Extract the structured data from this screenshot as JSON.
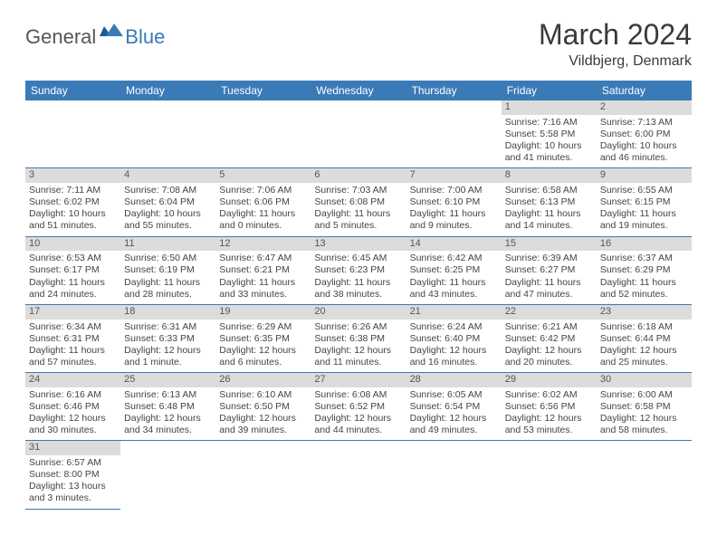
{
  "logo": {
    "text1": "General",
    "text2": "Blue"
  },
  "title": "March 2024",
  "location": "Vildbjerg, Denmark",
  "colors": {
    "header_bg": "#3a7ab7",
    "header_text": "#ffffff",
    "daynum_bg": "#dcdcdc",
    "border": "#3a7ab7",
    "body_text": "#444444",
    "page_bg": "#ffffff"
  },
  "typography": {
    "title_fontsize": 32,
    "location_fontsize": 16,
    "dayhead_fontsize": 12,
    "cell_fontsize": 10.5
  },
  "layout": {
    "columns": 7,
    "rows": 6
  },
  "weekdays": [
    "Sunday",
    "Monday",
    "Tuesday",
    "Wednesday",
    "Thursday",
    "Friday",
    "Saturday"
  ],
  "cells": [
    {
      "blank": true
    },
    {
      "blank": true
    },
    {
      "blank": true
    },
    {
      "blank": true
    },
    {
      "blank": true
    },
    {
      "day": "1",
      "sunrise": "Sunrise: 7:16 AM",
      "sunset": "Sunset: 5:58 PM",
      "dl1": "Daylight: 10 hours",
      "dl2": "and 41 minutes."
    },
    {
      "day": "2",
      "sunrise": "Sunrise: 7:13 AM",
      "sunset": "Sunset: 6:00 PM",
      "dl1": "Daylight: 10 hours",
      "dl2": "and 46 minutes."
    },
    {
      "day": "3",
      "sunrise": "Sunrise: 7:11 AM",
      "sunset": "Sunset: 6:02 PM",
      "dl1": "Daylight: 10 hours",
      "dl2": "and 51 minutes."
    },
    {
      "day": "4",
      "sunrise": "Sunrise: 7:08 AM",
      "sunset": "Sunset: 6:04 PM",
      "dl1": "Daylight: 10 hours",
      "dl2": "and 55 minutes."
    },
    {
      "day": "5",
      "sunrise": "Sunrise: 7:06 AM",
      "sunset": "Sunset: 6:06 PM",
      "dl1": "Daylight: 11 hours",
      "dl2": "and 0 minutes."
    },
    {
      "day": "6",
      "sunrise": "Sunrise: 7:03 AM",
      "sunset": "Sunset: 6:08 PM",
      "dl1": "Daylight: 11 hours",
      "dl2": "and 5 minutes."
    },
    {
      "day": "7",
      "sunrise": "Sunrise: 7:00 AM",
      "sunset": "Sunset: 6:10 PM",
      "dl1": "Daylight: 11 hours",
      "dl2": "and 9 minutes."
    },
    {
      "day": "8",
      "sunrise": "Sunrise: 6:58 AM",
      "sunset": "Sunset: 6:13 PM",
      "dl1": "Daylight: 11 hours",
      "dl2": "and 14 minutes."
    },
    {
      "day": "9",
      "sunrise": "Sunrise: 6:55 AM",
      "sunset": "Sunset: 6:15 PM",
      "dl1": "Daylight: 11 hours",
      "dl2": "and 19 minutes."
    },
    {
      "day": "10",
      "sunrise": "Sunrise: 6:53 AM",
      "sunset": "Sunset: 6:17 PM",
      "dl1": "Daylight: 11 hours",
      "dl2": "and 24 minutes."
    },
    {
      "day": "11",
      "sunrise": "Sunrise: 6:50 AM",
      "sunset": "Sunset: 6:19 PM",
      "dl1": "Daylight: 11 hours",
      "dl2": "and 28 minutes."
    },
    {
      "day": "12",
      "sunrise": "Sunrise: 6:47 AM",
      "sunset": "Sunset: 6:21 PM",
      "dl1": "Daylight: 11 hours",
      "dl2": "and 33 minutes."
    },
    {
      "day": "13",
      "sunrise": "Sunrise: 6:45 AM",
      "sunset": "Sunset: 6:23 PM",
      "dl1": "Daylight: 11 hours",
      "dl2": "and 38 minutes."
    },
    {
      "day": "14",
      "sunrise": "Sunrise: 6:42 AM",
      "sunset": "Sunset: 6:25 PM",
      "dl1": "Daylight: 11 hours",
      "dl2": "and 43 minutes."
    },
    {
      "day": "15",
      "sunrise": "Sunrise: 6:39 AM",
      "sunset": "Sunset: 6:27 PM",
      "dl1": "Daylight: 11 hours",
      "dl2": "and 47 minutes."
    },
    {
      "day": "16",
      "sunrise": "Sunrise: 6:37 AM",
      "sunset": "Sunset: 6:29 PM",
      "dl1": "Daylight: 11 hours",
      "dl2": "and 52 minutes."
    },
    {
      "day": "17",
      "sunrise": "Sunrise: 6:34 AM",
      "sunset": "Sunset: 6:31 PM",
      "dl1": "Daylight: 11 hours",
      "dl2": "and 57 minutes."
    },
    {
      "day": "18",
      "sunrise": "Sunrise: 6:31 AM",
      "sunset": "Sunset: 6:33 PM",
      "dl1": "Daylight: 12 hours",
      "dl2": "and 1 minute."
    },
    {
      "day": "19",
      "sunrise": "Sunrise: 6:29 AM",
      "sunset": "Sunset: 6:35 PM",
      "dl1": "Daylight: 12 hours",
      "dl2": "and 6 minutes."
    },
    {
      "day": "20",
      "sunrise": "Sunrise: 6:26 AM",
      "sunset": "Sunset: 6:38 PM",
      "dl1": "Daylight: 12 hours",
      "dl2": "and 11 minutes."
    },
    {
      "day": "21",
      "sunrise": "Sunrise: 6:24 AM",
      "sunset": "Sunset: 6:40 PM",
      "dl1": "Daylight: 12 hours",
      "dl2": "and 16 minutes."
    },
    {
      "day": "22",
      "sunrise": "Sunrise: 6:21 AM",
      "sunset": "Sunset: 6:42 PM",
      "dl1": "Daylight: 12 hours",
      "dl2": "and 20 minutes."
    },
    {
      "day": "23",
      "sunrise": "Sunrise: 6:18 AM",
      "sunset": "Sunset: 6:44 PM",
      "dl1": "Daylight: 12 hours",
      "dl2": "and 25 minutes."
    },
    {
      "day": "24",
      "sunrise": "Sunrise: 6:16 AM",
      "sunset": "Sunset: 6:46 PM",
      "dl1": "Daylight: 12 hours",
      "dl2": "and 30 minutes."
    },
    {
      "day": "25",
      "sunrise": "Sunrise: 6:13 AM",
      "sunset": "Sunset: 6:48 PM",
      "dl1": "Daylight: 12 hours",
      "dl2": "and 34 minutes."
    },
    {
      "day": "26",
      "sunrise": "Sunrise: 6:10 AM",
      "sunset": "Sunset: 6:50 PM",
      "dl1": "Daylight: 12 hours",
      "dl2": "and 39 minutes."
    },
    {
      "day": "27",
      "sunrise": "Sunrise: 6:08 AM",
      "sunset": "Sunset: 6:52 PM",
      "dl1": "Daylight: 12 hours",
      "dl2": "and 44 minutes."
    },
    {
      "day": "28",
      "sunrise": "Sunrise: 6:05 AM",
      "sunset": "Sunset: 6:54 PM",
      "dl1": "Daylight: 12 hours",
      "dl2": "and 49 minutes."
    },
    {
      "day": "29",
      "sunrise": "Sunrise: 6:02 AM",
      "sunset": "Sunset: 6:56 PM",
      "dl1": "Daylight: 12 hours",
      "dl2": "and 53 minutes."
    },
    {
      "day": "30",
      "sunrise": "Sunrise: 6:00 AM",
      "sunset": "Sunset: 6:58 PM",
      "dl1": "Daylight: 12 hours",
      "dl2": "and 58 minutes."
    },
    {
      "day": "31",
      "sunrise": "Sunrise: 6:57 AM",
      "sunset": "Sunset: 8:00 PM",
      "dl1": "Daylight: 13 hours",
      "dl2": "and 3 minutes."
    },
    {
      "blank": true,
      "noborder": true
    },
    {
      "blank": true,
      "noborder": true
    },
    {
      "blank": true,
      "noborder": true
    },
    {
      "blank": true,
      "noborder": true
    },
    {
      "blank": true,
      "noborder": true
    },
    {
      "blank": true,
      "noborder": true
    }
  ]
}
